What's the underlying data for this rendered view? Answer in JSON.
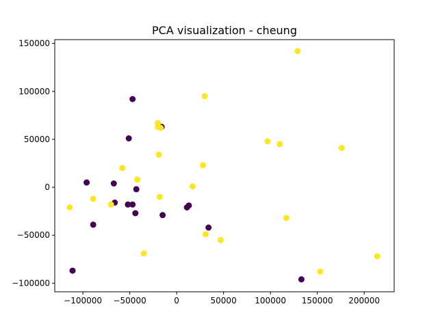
{
  "chart_data": {
    "type": "scatter",
    "title": "PCA visualization - cheung",
    "xlabel": "",
    "ylabel": "",
    "xlim": [
      -130000,
      232000
    ],
    "ylim": [
      -109000,
      154000
    ],
    "xticks": [
      -100000,
      -50000,
      0,
      50000,
      100000,
      150000,
      200000
    ],
    "xtick_labels": [
      "−100000",
      "−50000",
      "0",
      "50000",
      "100000",
      "150000",
      "200000"
    ],
    "yticks": [
      -100000,
      -50000,
      0,
      50000,
      100000,
      150000
    ],
    "ytick_labels": [
      "−100000",
      "−50000",
      "0",
      "50000",
      "100000",
      "150000"
    ],
    "grid": false,
    "colors": {
      "class_0": "#440154",
      "class_1": "#fde725"
    },
    "series": [
      {
        "color": "#440154",
        "points": [
          {
            "x": -47000,
            "y": 92000
          },
          {
            "x": -51000,
            "y": 51000
          },
          {
            "x": -16000,
            "y": 63000
          },
          {
            "x": -96000,
            "y": 5000
          },
          {
            "x": -67000,
            "y": 4000
          },
          {
            "x": -43000,
            "y": -2000
          },
          {
            "x": -66000,
            "y": -16000
          },
          {
            "x": -52000,
            "y": -18000
          },
          {
            "x": -47000,
            "y": -18000
          },
          {
            "x": -44000,
            "y": -27000
          },
          {
            "x": -15000,
            "y": -29000
          },
          {
            "x": -89000,
            "y": -39000
          },
          {
            "x": 13000,
            "y": -19000
          },
          {
            "x": 11000,
            "y": -21000
          },
          {
            "x": 34000,
            "y": -42000
          },
          {
            "x": -111000,
            "y": -87000
          },
          {
            "x": 133000,
            "y": -96000
          }
        ]
      },
      {
        "color": "#fde725",
        "points": [
          {
            "x": 129000,
            "y": 142000
          },
          {
            "x": 30000,
            "y": 95000
          },
          {
            "x": -20000,
            "y": 67000
          },
          {
            "x": -20000,
            "y": 63000
          },
          {
            "x": -17000,
            "y": 62000
          },
          {
            "x": 97000,
            "y": 48000
          },
          {
            "x": 110000,
            "y": 45000
          },
          {
            "x": 176000,
            "y": 41000
          },
          {
            "x": -19000,
            "y": 34000
          },
          {
            "x": 28000,
            "y": 23000
          },
          {
            "x": -58000,
            "y": 20000
          },
          {
            "x": -42000,
            "y": 8000
          },
          {
            "x": 17000,
            "y": 1000
          },
          {
            "x": -18000,
            "y": -10000
          },
          {
            "x": -89000,
            "y": -12000
          },
          {
            "x": -70000,
            "y": -18000
          },
          {
            "x": -114000,
            "y": -21000
          },
          {
            "x": 117000,
            "y": -32000
          },
          {
            "x": 31000,
            "y": -49000
          },
          {
            "x": 47000,
            "y": -55000
          },
          {
            "x": -35000,
            "y": -69000
          },
          {
            "x": 214000,
            "y": -72000
          },
          {
            "x": 153000,
            "y": -88000
          }
        ]
      }
    ]
  }
}
